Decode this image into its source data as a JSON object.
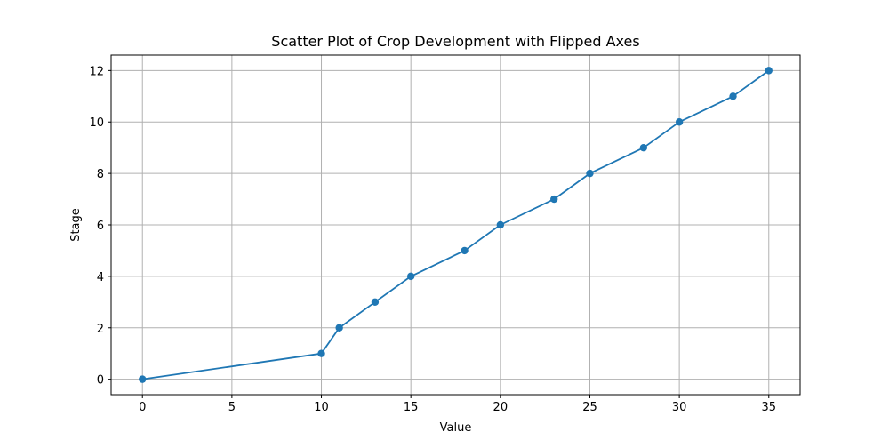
{
  "chart_data": {
    "type": "line",
    "title": "Scatter Plot of Crop Development with Flipped Axes",
    "xlabel": "Value",
    "ylabel": "Stage",
    "xlim": [
      -1.75,
      36.75
    ],
    "ylim": [
      -0.6,
      12.6
    ],
    "x_ticks": [
      0,
      5,
      10,
      15,
      20,
      25,
      30,
      35
    ],
    "y_ticks": [
      0,
      2,
      4,
      6,
      8,
      10,
      12
    ],
    "grid": true,
    "marker": "circle",
    "series": [
      {
        "color": "#1f77b4",
        "points": [
          {
            "x": 0,
            "y": 0
          },
          {
            "x": 10,
            "y": 1
          },
          {
            "x": 11,
            "y": 2
          },
          {
            "x": 13,
            "y": 3
          },
          {
            "x": 15,
            "y": 4
          },
          {
            "x": 18,
            "y": 5
          },
          {
            "x": 20,
            "y": 6
          },
          {
            "x": 23,
            "y": 7
          },
          {
            "x": 25,
            "y": 8
          },
          {
            "x": 28,
            "y": 9
          },
          {
            "x": 30,
            "y": 10
          },
          {
            "x": 33,
            "y": 11
          },
          {
            "x": 35,
            "y": 12
          }
        ]
      }
    ]
  }
}
